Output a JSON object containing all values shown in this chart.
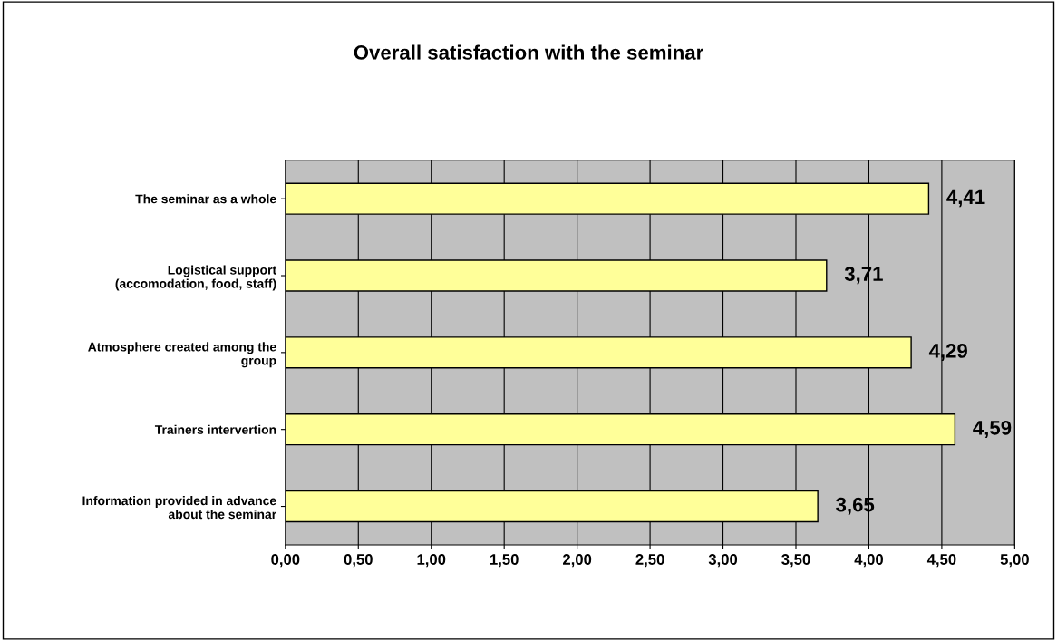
{
  "chart_data": {
    "type": "bar",
    "orientation": "horizontal",
    "title": "Overall satisfaction with the seminar",
    "categories": [
      "The seminar as a whole",
      "Logistical support\n(accomodation, food, staff)",
      "Atmosphere created among the\ngroup",
      "Trainers intervertion",
      "Information provided in advance\nabout the seminar"
    ],
    "values": [
      4.41,
      3.71,
      4.29,
      4.59,
      3.65
    ],
    "value_labels": [
      "4,41",
      "3,71",
      "4,29",
      "4,59",
      "3,65"
    ],
    "color": "#ffff99",
    "xlim": [
      0,
      5
    ],
    "xticks": [
      {
        "value": 0,
        "label": "0,00"
      },
      {
        "value": 0.5,
        "label": "0,50"
      },
      {
        "value": 1,
        "label": "1,00"
      },
      {
        "value": 1.5,
        "label": "1,50"
      },
      {
        "value": 2,
        "label": "2,00"
      },
      {
        "value": 2.5,
        "label": "2,50"
      },
      {
        "value": 3,
        "label": "3,00"
      },
      {
        "value": 3.5,
        "label": "3,50"
      },
      {
        "value": 4,
        "label": "4,00"
      },
      {
        "value": 4.5,
        "label": "4,50"
      },
      {
        "value": 5,
        "label": "5,00"
      }
    ],
    "grid": "x"
  }
}
